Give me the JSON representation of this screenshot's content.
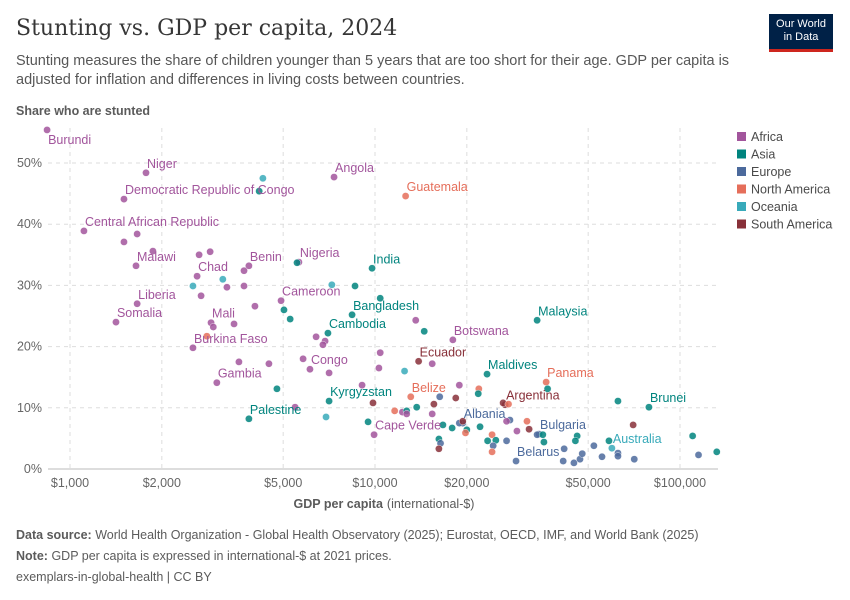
{
  "header": {
    "title": "Stunting vs. GDP per capita, 2024",
    "subtitle": "Stunting measures the share of children younger than 5 years that are too short for their age. GDP per capita is adjusted for inflation and differences in living costs between countries.",
    "logo": "Our World in Data"
  },
  "footer": {
    "source_label": "Data source:",
    "source": "World Health Organization - Global Health Observatory (2025); Eurostat, OECD, IMF, and World Bank (2025)",
    "note_label": "Note:",
    "note": "GDP per capita is expressed in international-$ at 2021 prices.",
    "credit": "exemplars-in-global-health | CC BY"
  },
  "chart_data": {
    "type": "scatter",
    "title": "Stunting vs. GDP per capita, 2024",
    "xlabel": "GDP per capita",
    "xlabel_unit": "(international-$)",
    "ylabel": "Share who are stunted",
    "x_scale": "log",
    "xlim": [
      860,
      133000
    ],
    "ylim": [
      0,
      55
    ],
    "x_ticks": [
      {
        "v": 1000,
        "t": "$1,000"
      },
      {
        "v": 2000,
        "t": "$2,000"
      },
      {
        "v": 5000,
        "t": "$5,000"
      },
      {
        "v": 10000,
        "t": "$10,000"
      },
      {
        "v": 20000,
        "t": "$20,000"
      },
      {
        "v": 50000,
        "t": "$50,000"
      },
      {
        "v": 100000,
        "t": "$100,000"
      }
    ],
    "y_ticks": [
      {
        "v": 0,
        "t": "0%"
      },
      {
        "v": 10,
        "t": "10%"
      },
      {
        "v": 20,
        "t": "20%"
      },
      {
        "v": 30,
        "t": "30%"
      },
      {
        "v": 40,
        "t": "40%"
      },
      {
        "v": 50,
        "t": "50%"
      }
    ],
    "grid": true,
    "legend_position": "right",
    "legend": [
      {
        "name": "Africa",
        "color": "#a2559c"
      },
      {
        "name": "Asia",
        "color": "#00847e"
      },
      {
        "name": "Europe",
        "color": "#4c6a9c"
      },
      {
        "name": "North America",
        "color": "#e56e5a"
      },
      {
        "name": "Oceania",
        "color": "#38aaba"
      },
      {
        "name": "South America",
        "color": "#883039"
      }
    ],
    "points": [
      {
        "x": 841,
        "y": 55.4,
        "r": "Africa",
        "label": "Burundi"
      },
      {
        "x": 1775,
        "y": 48.4,
        "r": "Africa",
        "label": "Niger"
      },
      {
        "x": 1503,
        "y": 44.1,
        "r": "Africa",
        "label": "Democratic Republic of Congo"
      },
      {
        "x": 1111,
        "y": 38.9,
        "r": "Africa",
        "label": "Central African Republic"
      },
      {
        "x": 1646,
        "y": 33.2,
        "r": "Africa",
        "label": "Malawi"
      },
      {
        "x": 7340,
        "y": 47.7,
        "r": "Africa",
        "label": "Angola"
      },
      {
        "x": 12600,
        "y": 44.6,
        "r": "North America",
        "label": "Guatemala"
      },
      {
        "x": 2610,
        "y": 31.5,
        "r": "Africa",
        "label": "Chad"
      },
      {
        "x": 3860,
        "y": 33.2,
        "r": "Africa",
        "label": "Benin"
      },
      {
        "x": 5630,
        "y": 33.8,
        "r": "Africa",
        "label": "Nigeria"
      },
      {
        "x": 9780,
        "y": 32.8,
        "r": "Asia",
        "label": "India"
      },
      {
        "x": 1660,
        "y": 27.0,
        "r": "Africa",
        "label": "Liberia"
      },
      {
        "x": 1415,
        "y": 24.0,
        "r": "Africa",
        "label": "Somalia"
      },
      {
        "x": 2900,
        "y": 23.9,
        "r": "Africa",
        "label": "Mali"
      },
      {
        "x": 2530,
        "y": 19.8,
        "r": "Africa",
        "label": "Burkina Faso"
      },
      {
        "x": 4920,
        "y": 27.5,
        "r": "Africa",
        "label": "Cameroon"
      },
      {
        "x": 8410,
        "y": 25.2,
        "r": "Asia",
        "label": "Bangladesh"
      },
      {
        "x": 7010,
        "y": 22.2,
        "r": "Asia",
        "label": "Cambodia"
      },
      {
        "x": 6120,
        "y": 16.3,
        "r": "Africa",
        "label": "Congo"
      },
      {
        "x": 3030,
        "y": 14.1,
        "r": "Africa",
        "label": "Gambia"
      },
      {
        "x": 3860,
        "y": 8.2,
        "r": "Asia",
        "label": "Palestine"
      },
      {
        "x": 7070,
        "y": 11.1,
        "r": "Asia",
        "label": "Kyrgyzstan"
      },
      {
        "x": 9930,
        "y": 5.6,
        "r": "Africa",
        "label": "Cape Verde"
      },
      {
        "x": 13100,
        "y": 11.8,
        "r": "North America",
        "label": "Belize"
      },
      {
        "x": 13900,
        "y": 17.6,
        "r": "South America",
        "label": "Ecuador"
      },
      {
        "x": 18000,
        "y": 21.1,
        "r": "Africa",
        "label": "Botswana"
      },
      {
        "x": 34000,
        "y": 24.3,
        "r": "Asia",
        "label": "Malaysia"
      },
      {
        "x": 23300,
        "y": 15.5,
        "r": "Asia",
        "label": "Maldives"
      },
      {
        "x": 36400,
        "y": 14.2,
        "r": "North America",
        "label": "Panama"
      },
      {
        "x": 26700,
        "y": 10.5,
        "r": "South America",
        "label": "Argentina"
      },
      {
        "x": 19400,
        "y": 7.5,
        "r": "Europe",
        "label": "Albania"
      },
      {
        "x": 34500,
        "y": 5.7,
        "r": "Europe",
        "label": "Bulgaria"
      },
      {
        "x": 29000,
        "y": 1.3,
        "r": "Europe",
        "label": "Belarus"
      },
      {
        "x": 79100,
        "y": 10.1,
        "r": "Asia",
        "label": "Brunei"
      },
      {
        "x": 59800,
        "y": 3.4,
        "r": "Oceania",
        "label": "Australia"
      },
      {
        "x": 4290,
        "y": 47.5,
        "r": "Oceania"
      },
      {
        "x": 4170,
        "y": 45.4,
        "r": "Asia"
      },
      {
        "x": 1660,
        "y": 38.4,
        "r": "Africa"
      },
      {
        "x": 1503,
        "y": 37.1,
        "r": "Africa"
      },
      {
        "x": 1870,
        "y": 35.6,
        "r": "Africa"
      },
      {
        "x": 2650,
        "y": 35.0,
        "r": "Africa"
      },
      {
        "x": 2880,
        "y": 35.5,
        "r": "Africa"
      },
      {
        "x": 3170,
        "y": 31.0,
        "r": "Oceania"
      },
      {
        "x": 2530,
        "y": 29.9,
        "r": "Oceania"
      },
      {
        "x": 3270,
        "y": 29.7,
        "r": "Africa"
      },
      {
        "x": 3720,
        "y": 29.9,
        "r": "Africa"
      },
      {
        "x": 3720,
        "y": 32.4,
        "r": "Africa"
      },
      {
        "x": 5550,
        "y": 33.7,
        "r": "Asia"
      },
      {
        "x": 7220,
        "y": 30.1,
        "r": "Oceania"
      },
      {
        "x": 8600,
        "y": 29.9,
        "r": "Asia"
      },
      {
        "x": 10400,
        "y": 27.9,
        "r": "Asia"
      },
      {
        "x": 2690,
        "y": 28.3,
        "r": "Africa"
      },
      {
        "x": 4040,
        "y": 26.6,
        "r": "Africa"
      },
      {
        "x": 5030,
        "y": 26.0,
        "r": "Asia"
      },
      {
        "x": 5270,
        "y": 24.5,
        "r": "Asia"
      },
      {
        "x": 2950,
        "y": 23.2,
        "r": "Africa"
      },
      {
        "x": 3450,
        "y": 23.7,
        "r": "Africa"
      },
      {
        "x": 2810,
        "y": 21.7,
        "r": "North America"
      },
      {
        "x": 6410,
        "y": 21.6,
        "r": "Africa"
      },
      {
        "x": 6860,
        "y": 20.9,
        "r": "Africa"
      },
      {
        "x": 6750,
        "y": 20.3,
        "r": "Africa"
      },
      {
        "x": 10400,
        "y": 19.0,
        "r": "Africa"
      },
      {
        "x": 13600,
        "y": 24.3,
        "r": "Africa"
      },
      {
        "x": 3580,
        "y": 17.5,
        "r": "Africa"
      },
      {
        "x": 4490,
        "y": 17.2,
        "r": "Africa"
      },
      {
        "x": 5810,
        "y": 18.0,
        "r": "Africa"
      },
      {
        "x": 7070,
        "y": 15.7,
        "r": "Africa"
      },
      {
        "x": 10300,
        "y": 16.5,
        "r": "Africa"
      },
      {
        "x": 12500,
        "y": 16.0,
        "r": "Oceania"
      },
      {
        "x": 4770,
        "y": 13.1,
        "r": "Asia"
      },
      {
        "x": 9070,
        "y": 13.7,
        "r": "Africa"
      },
      {
        "x": 5470,
        "y": 10.1,
        "r": "Africa"
      },
      {
        "x": 6910,
        "y": 8.5,
        "r": "Oceania"
      },
      {
        "x": 9850,
        "y": 10.8,
        "r": "South America"
      },
      {
        "x": 9490,
        "y": 7.7,
        "r": "Asia"
      },
      {
        "x": 11600,
        "y": 9.5,
        "r": "North America"
      },
      {
        "x": 12300,
        "y": 9.3,
        "r": "Africa"
      },
      {
        "x": 12700,
        "y": 9.5,
        "r": "Asia"
      },
      {
        "x": 12700,
        "y": 9.0,
        "r": "Africa"
      },
      {
        "x": 13700,
        "y": 10.1,
        "r": "Asia"
      },
      {
        "x": 14500,
        "y": 22.5,
        "r": "Asia"
      },
      {
        "x": 15400,
        "y": 17.2,
        "r": "Africa"
      },
      {
        "x": 18900,
        "y": 13.7,
        "r": "Africa"
      },
      {
        "x": 21900,
        "y": 13.1,
        "r": "North America"
      },
      {
        "x": 21800,
        "y": 12.3,
        "r": "Asia"
      },
      {
        "x": 16300,
        "y": 11.8,
        "r": "Europe"
      },
      {
        "x": 15600,
        "y": 10.6,
        "r": "South America"
      },
      {
        "x": 18400,
        "y": 11.6,
        "r": "South America"
      },
      {
        "x": 15400,
        "y": 9.0,
        "r": "Africa"
      },
      {
        "x": 16700,
        "y": 7.2,
        "r": "Asia"
      },
      {
        "x": 17900,
        "y": 6.7,
        "r": "Asia"
      },
      {
        "x": 18900,
        "y": 7.5,
        "r": "Europe"
      },
      {
        "x": 19400,
        "y": 7.8,
        "r": "South America"
      },
      {
        "x": 20000,
        "y": 6.4,
        "r": "Asia"
      },
      {
        "x": 19800,
        "y": 5.9,
        "r": "North America"
      },
      {
        "x": 22100,
        "y": 6.9,
        "r": "Asia"
      },
      {
        "x": 26300,
        "y": 10.8,
        "r": "South America"
      },
      {
        "x": 27400,
        "y": 10.6,
        "r": "North America"
      },
      {
        "x": 27700,
        "y": 8.0,
        "r": "Europe"
      },
      {
        "x": 27000,
        "y": 7.8,
        "r": "Africa"
      },
      {
        "x": 31500,
        "y": 7.8,
        "r": "North America"
      },
      {
        "x": 32000,
        "y": 6.5,
        "r": "South America"
      },
      {
        "x": 29200,
        "y": 6.2,
        "r": "Africa"
      },
      {
        "x": 24200,
        "y": 5.6,
        "r": "North America"
      },
      {
        "x": 23400,
        "y": 4.6,
        "r": "Asia"
      },
      {
        "x": 24900,
        "y": 4.7,
        "r": "Asia"
      },
      {
        "x": 24400,
        "y": 3.8,
        "r": "Europe"
      },
      {
        "x": 24200,
        "y": 2.8,
        "r": "North America"
      },
      {
        "x": 27000,
        "y": 4.6,
        "r": "Europe"
      },
      {
        "x": 16200,
        "y": 4.9,
        "r": "Asia"
      },
      {
        "x": 16400,
        "y": 4.2,
        "r": "Europe"
      },
      {
        "x": 16200,
        "y": 3.3,
        "r": "South America"
      },
      {
        "x": 34000,
        "y": 5.6,
        "r": "Europe"
      },
      {
        "x": 35500,
        "y": 5.6,
        "r": "Asia"
      },
      {
        "x": 35800,
        "y": 4.4,
        "r": "Asia"
      },
      {
        "x": 36800,
        "y": 13.1,
        "r": "Asia"
      },
      {
        "x": 41700,
        "y": 3.3,
        "r": "Europe"
      },
      {
        "x": 41400,
        "y": 1.3,
        "r": "Europe"
      },
      {
        "x": 44900,
        "y": 1.0,
        "r": "Europe"
      },
      {
        "x": 47000,
        "y": 1.6,
        "r": "Europe"
      },
      {
        "x": 47800,
        "y": 2.5,
        "r": "Europe"
      },
      {
        "x": 46000,
        "y": 5.4,
        "r": "Asia"
      },
      {
        "x": 45400,
        "y": 4.6,
        "r": "Asia"
      },
      {
        "x": 52200,
        "y": 3.8,
        "r": "Europe"
      },
      {
        "x": 55500,
        "y": 2.0,
        "r": "Europe"
      },
      {
        "x": 58500,
        "y": 4.6,
        "r": "Asia"
      },
      {
        "x": 62600,
        "y": 11.1,
        "r": "Asia"
      },
      {
        "x": 62600,
        "y": 2.6,
        "r": "Europe"
      },
      {
        "x": 62600,
        "y": 2.1,
        "r": "Europe"
      },
      {
        "x": 70200,
        "y": 7.2,
        "r": "South America"
      },
      {
        "x": 70800,
        "y": 1.6,
        "r": "Europe"
      },
      {
        "x": 110000,
        "y": 5.4,
        "r": "Asia"
      },
      {
        "x": 115000,
        "y": 2.3,
        "r": "Europe"
      },
      {
        "x": 132000,
        "y": 2.8,
        "r": "Asia"
      }
    ]
  }
}
